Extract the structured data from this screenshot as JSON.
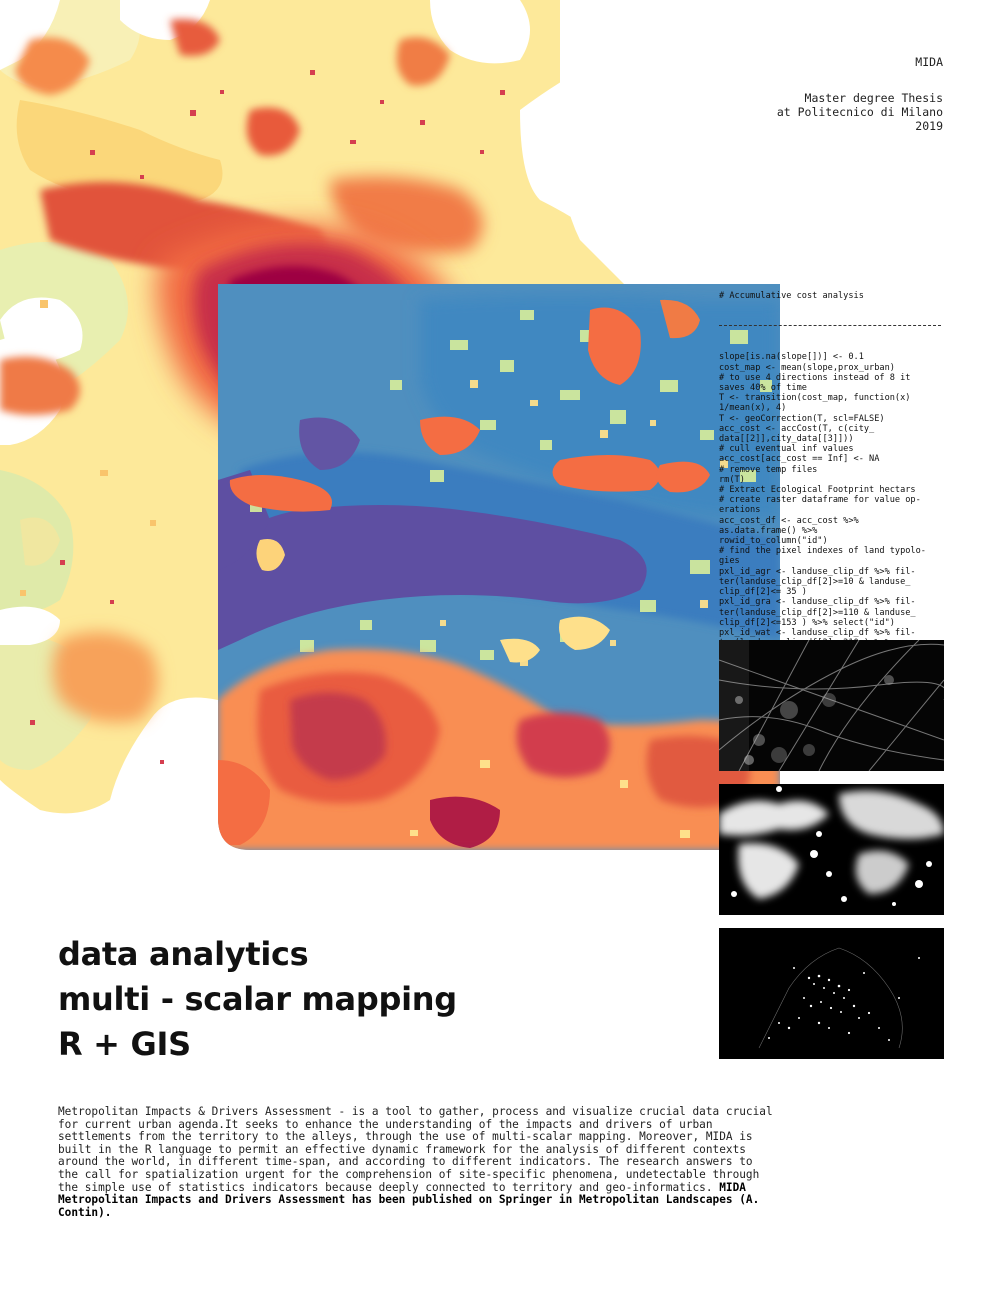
{
  "header": {
    "title": "MIDA",
    "line1": "Master degree Thesis",
    "line2": "at Politecnico di Milano",
    "year": "2019"
  },
  "code": {
    "heading": "# Accumulative cost analysis",
    "text": "slope[is.na(slope[])] <- 0.1\ncost_map <- mean(slope,prox_urban)\n# to use 4 directions instead of 8 it\nsaves 40% of time\nT <- transition(cost_map, function(x)\n1/mean(x), 4)\nT <- geoCorrection(T, scl=FALSE)\nacc_cost <- accCost(T, c(city_\ndata[[2]],city_data[[3]]))\n# cull eventual inf values\nacc_cost[acc_cost == Inf] <- NA\n# remove temp files\nrm(T)\n# Extract Ecological Footprint hectars\n# create raster dataframe for value op-\nerations\nacc_cost_df <- acc_cost %>%\nas.data.frame() %>%\nrowid_to_column(\"id\")\n# find the pixel indexes of land typolo-\ngies\npxl_id_agr <- landuse_clip_df %>% fil-\nter(landuse_clip_df[2]>=10 & landuse_\nclip_df[2]<= 35 )\npxl_id_gra <- landuse_clip_df %>% fil-\nter(landuse_clip_df[2]>=110 & landuse_\nclip_df[2]<=153 ) %>% select(\"id\")\npxl_id_wat <- landuse_clip_df %>% fil-\nter(landuse_clip_df[2]==210 ) %>% se-\nlect(\"id\")\npxl_id_for <- landuse_clip_df %>% fil-\nter(landuse_clip_df[2]>=...\nclip_df[2]...\nselect(\"id\")\n...\nacce...\nl_landus..."
  },
  "headline": {
    "line1": "data analytics",
    "line2": "multi - scalar mapping",
    "line3": "R + GIS"
  },
  "description": {
    "body": "Metropolitan Impacts & Drivers Assessment - is a tool to gather, process and visualize crucial data crucial for current urban agenda.It seeks to enhance the understanding of the impacts and drivers of urban settlements from the territory to the alleys, through the use of multi-scalar mapping. Moreover, MIDA is built in the R language to permit an effective dynamic framework for the analysis of different contexts around the world, in different time-span, and according to different indicators. The research answers to the call for spatialization urgent for the comprehension of site-specific phenomena, undetectable through the simple use of statistics indicators because deeply connected to territory and geo-informatics. ",
    "bold": "MIDA Metropolitan Impacts and Drivers Assessment has been published on Springer in Metropolitan Landscapes (A. Contin)."
  },
  "colors": {
    "spectral_dark_red": "#9e0142",
    "spectral_red": "#d53e4f",
    "spectral_orange": "#f46d43",
    "spectral_yellow": "#fee08b",
    "spectral_pale": "#f5f3b8",
    "spectral_green": "#abdda4",
    "spectral_blue": "#3288bd",
    "spectral_purple": "#5e4fa2"
  }
}
